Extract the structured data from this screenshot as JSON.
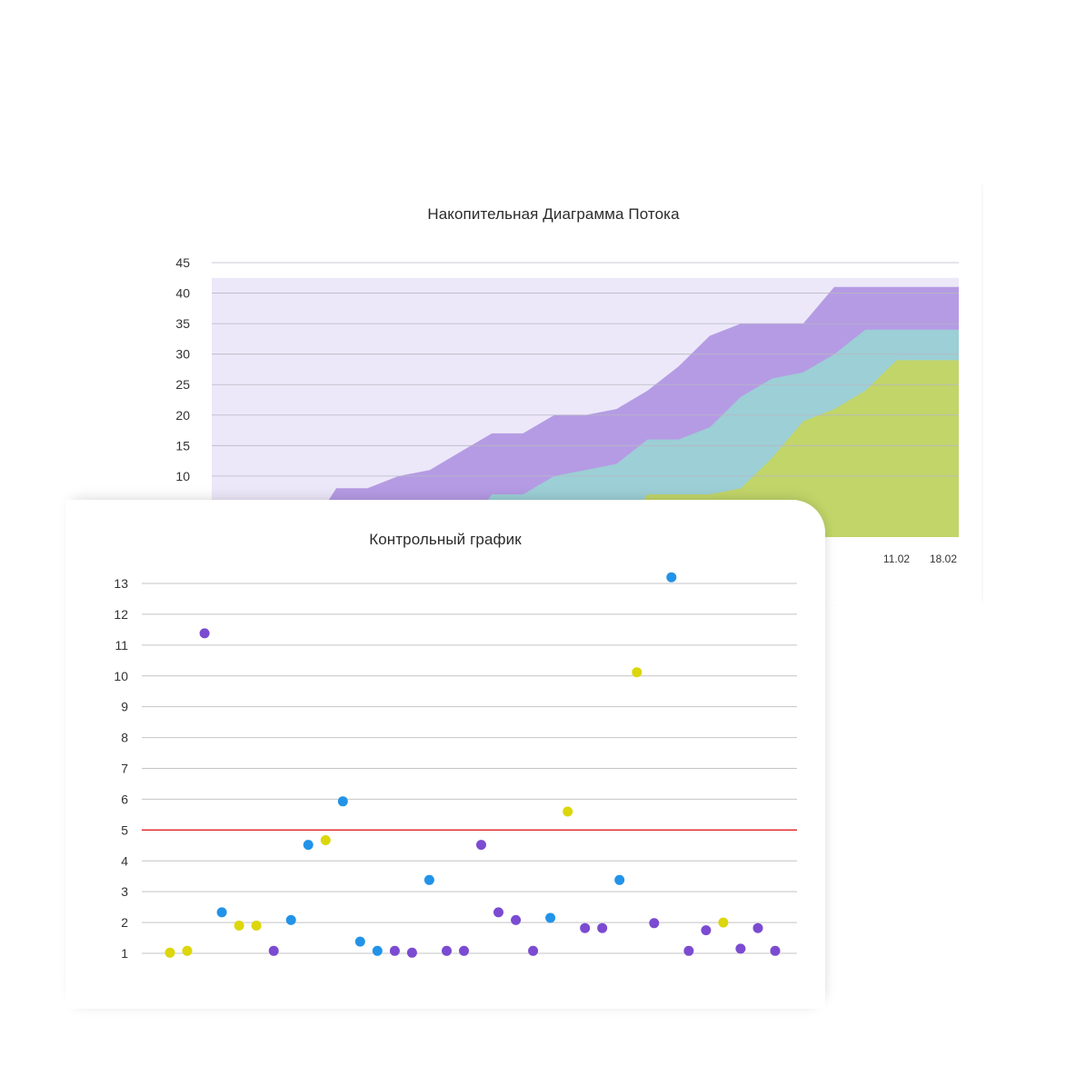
{
  "chart_data": [
    {
      "type": "area",
      "title": "Накопительная Диаграмма Потока",
      "xlabel": "",
      "ylabel": "",
      "ylim": [
        0,
        45
      ],
      "yticks": [
        10,
        15,
        20,
        25,
        30,
        35,
        40,
        45
      ],
      "x_tick_labels": [
        {
          "x": 22,
          "label": "11.02"
        },
        {
          "x": 24,
          "label": "18.02"
        }
      ],
      "x_range": [
        0,
        24
      ],
      "grid": true,
      "stacked": true,
      "series": [
        {
          "color": "#c1d569",
          "values": [
            0,
            0,
            0,
            0,
            0,
            0,
            0,
            0,
            0,
            0,
            0,
            0,
            0,
            0,
            7,
            7,
            7,
            8,
            13,
            19,
            21,
            24,
            29,
            29,
            29
          ]
        },
        {
          "color": "#9ccfd6",
          "values": [
            0,
            0,
            0,
            0,
            0,
            0,
            0,
            0,
            0,
            7,
            7,
            10,
            11,
            12,
            16,
            16,
            18,
            23,
            26,
            27,
            30,
            34,
            34,
            34,
            34
          ]
        },
        {
          "color": "#b59be4",
          "values": [
            0,
            0,
            0,
            0,
            8,
            8,
            10,
            11,
            14,
            17,
            17,
            20,
            20,
            21,
            24,
            28,
            33,
            35,
            35,
            35,
            41,
            41,
            41,
            41,
            41
          ]
        }
      ],
      "background_band": {
        "color": "#ece8f9",
        "from": 0,
        "to": 42.5
      },
      "x_end": 20
    },
    {
      "type": "scatter",
      "title": "Контрольный график",
      "xlabel": "",
      "ylabel": "",
      "ylim": [
        1,
        13
      ],
      "yticks": [
        1,
        2,
        3,
        4,
        5,
        6,
        7,
        8,
        9,
        10,
        11,
        12,
        13
      ],
      "threshold": {
        "value": 5,
        "color": "#e02020"
      },
      "grid": true,
      "colors": {
        "yellow": "#dcd60b",
        "blue": "#2293e8",
        "purple": "#7b4bd1"
      },
      "points": [
        {
          "x": 0,
          "y": 1.02,
          "c": "yellow"
        },
        {
          "x": 1,
          "y": 1.08,
          "c": "yellow"
        },
        {
          "x": 2,
          "y": 11.38,
          "c": "purple"
        },
        {
          "x": 3,
          "y": 2.33,
          "c": "blue"
        },
        {
          "x": 4,
          "y": 1.9,
          "c": "yellow"
        },
        {
          "x": 5,
          "y": 1.9,
          "c": "yellow"
        },
        {
          "x": 6,
          "y": 1.08,
          "c": "purple"
        },
        {
          "x": 7,
          "y": 2.08,
          "c": "blue"
        },
        {
          "x": 8,
          "y": 4.52,
          "c": "blue"
        },
        {
          "x": 9,
          "y": 4.67,
          "c": "yellow"
        },
        {
          "x": 10,
          "y": 5.93,
          "c": "blue"
        },
        {
          "x": 11,
          "y": 1.38,
          "c": "blue"
        },
        {
          "x": 12,
          "y": 1.08,
          "c": "blue"
        },
        {
          "x": 13,
          "y": 1.08,
          "c": "purple"
        },
        {
          "x": 14,
          "y": 1.02,
          "c": "purple"
        },
        {
          "x": 15,
          "y": 3.38,
          "c": "blue"
        },
        {
          "x": 16,
          "y": 1.08,
          "c": "purple"
        },
        {
          "x": 17,
          "y": 1.08,
          "c": "purple"
        },
        {
          "x": 18,
          "y": 4.52,
          "c": "purple"
        },
        {
          "x": 19,
          "y": 2.33,
          "c": "purple"
        },
        {
          "x": 20,
          "y": 2.08,
          "c": "purple"
        },
        {
          "x": 21,
          "y": 1.08,
          "c": "purple"
        },
        {
          "x": 22,
          "y": 2.15,
          "c": "blue"
        },
        {
          "x": 23,
          "y": 5.6,
          "c": "yellow"
        },
        {
          "x": 24,
          "y": 1.82,
          "c": "purple"
        },
        {
          "x": 25,
          "y": 1.82,
          "c": "purple"
        },
        {
          "x": 26,
          "y": 3.38,
          "c": "blue"
        },
        {
          "x": 27,
          "y": 10.12,
          "c": "yellow"
        },
        {
          "x": 28,
          "y": 1.98,
          "c": "purple"
        },
        {
          "x": 29,
          "y": 13.2,
          "c": "blue"
        },
        {
          "x": 30,
          "y": 1.08,
          "c": "purple"
        },
        {
          "x": 31,
          "y": 1.75,
          "c": "purple"
        },
        {
          "x": 32,
          "y": 2.0,
          "c": "yellow"
        },
        {
          "x": 33,
          "y": 1.15,
          "c": "purple"
        },
        {
          "x": 34,
          "y": 1.82,
          "c": "purple"
        },
        {
          "x": 35,
          "y": 1.08,
          "c": "purple"
        }
      ]
    }
  ]
}
